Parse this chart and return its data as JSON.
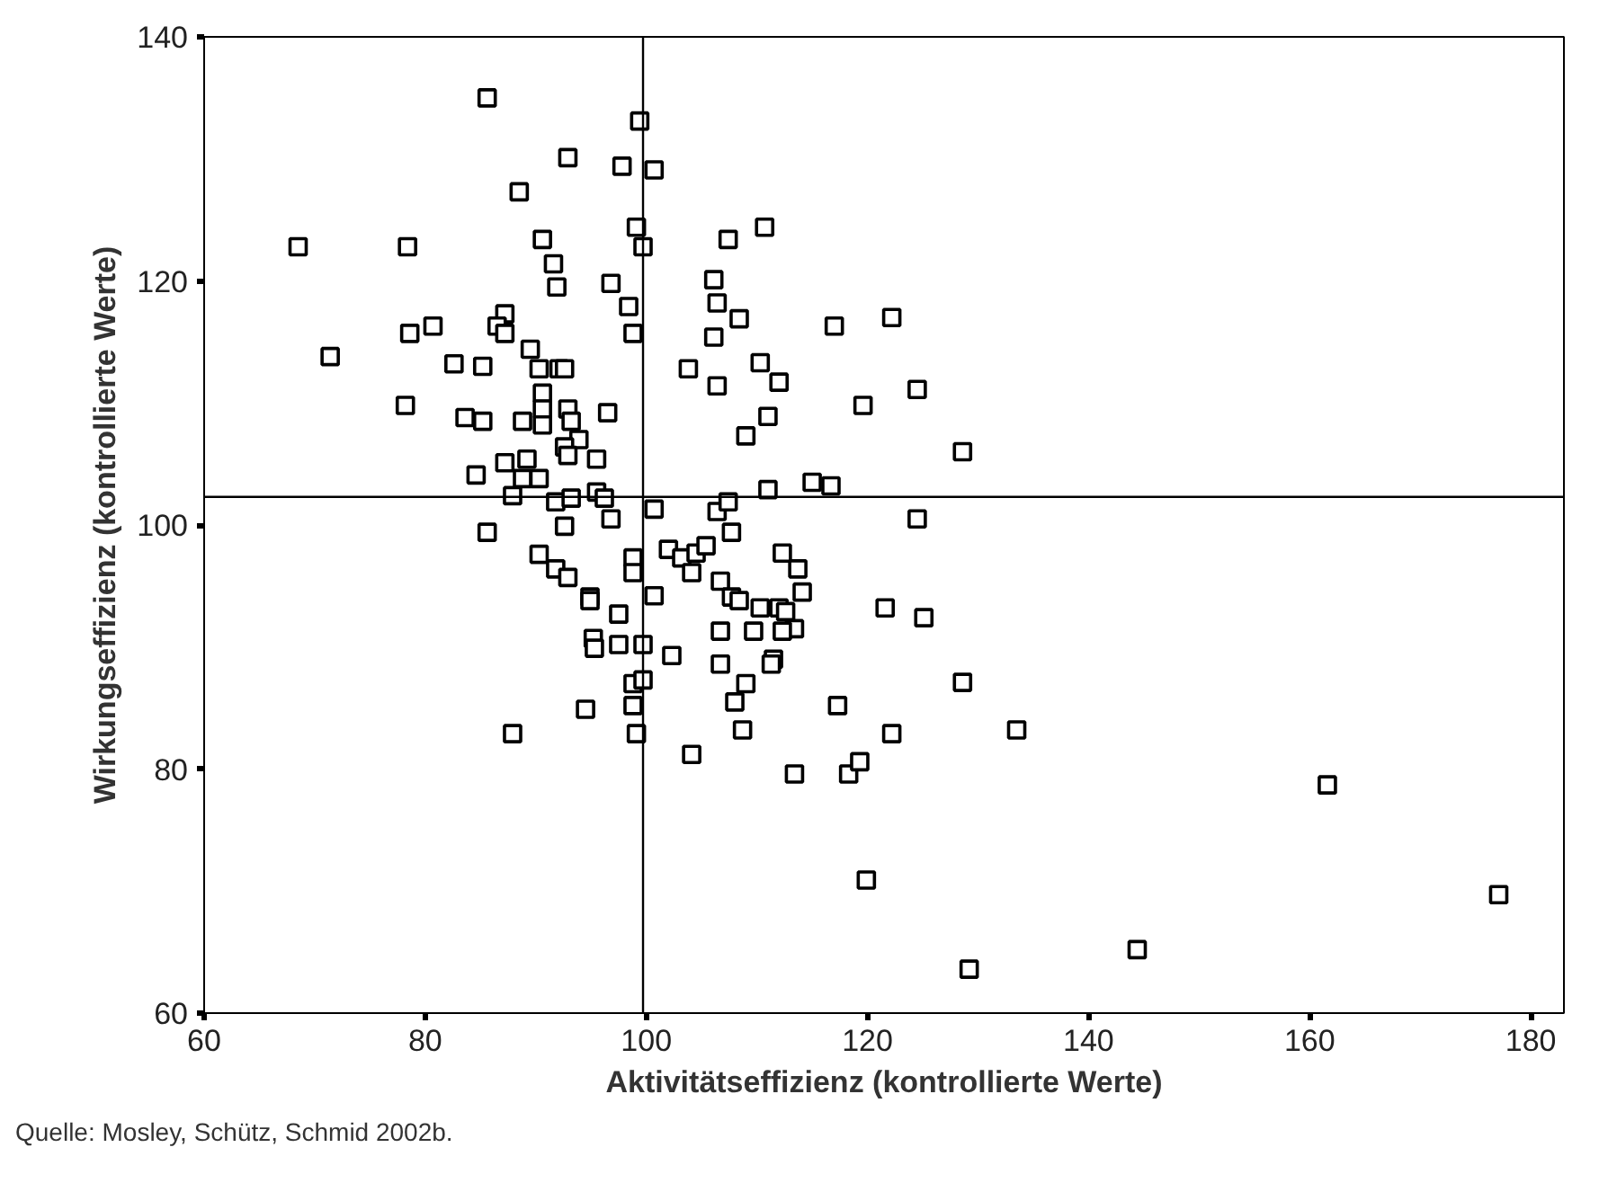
{
  "chart_data": {
    "type": "scatter",
    "xlabel": "Aktivitätseffizienz (kontrollierte Werte)",
    "ylabel": "Wirkungseffizienz (kontrollierte Werte)",
    "annotations": [
      "Quelle: Mosley, Schütz, Schmid 2002b."
    ],
    "xlim": [
      60,
      183
    ],
    "ylim": [
      60,
      140
    ],
    "xticks": [
      60,
      80,
      100,
      120,
      140,
      160,
      180
    ],
    "yticks": [
      60,
      80,
      100,
      120,
      140
    ],
    "grid": false,
    "marker": "square",
    "ref_lines": [
      {
        "axis": "x",
        "value": 99.7,
        "color": "#000000"
      },
      {
        "axis": "y",
        "value": 102.3,
        "color": "#000000"
      }
    ],
    "series": [
      {
        "color": "#000000",
        "x": [
          85.6,
          99.4,
          92.9,
          97.8,
          88.5,
          99.1,
          90.6,
          99.7,
          68.5,
          78.4,
          91.6,
          91.9,
          96.8,
          98.4,
          87.2,
          78.6,
          80.7,
          86.5,
          87.2,
          98.8,
          89.5,
          71.4,
          82.6,
          85.2,
          90.3,
          92.1,
          92.6,
          90.6,
          78.2,
          90.6,
          92.9,
          96.5,
          83.6,
          85.2,
          88.8,
          90.6,
          93.2,
          93.9,
          92.6,
          92.9,
          95.5,
          87.2,
          89.2,
          84.6,
          88.8,
          90.3,
          87.9,
          91.8,
          93.2,
          95.5,
          96.2,
          96.8,
          92.6,
          85.6,
          100.7,
          110.7,
          107.4,
          106.1,
          106.4,
          108.4,
          117.0,
          122.2,
          106.1,
          103.8,
          110.3,
          106.4,
          112.0,
          124.5,
          119.6,
          111.0,
          109.0,
          128.6,
          111.0,
          115.0,
          116.7,
          100.7,
          106.4,
          107.4,
          107.7,
          124.5,
          90.3,
          91.8,
          92.9,
          98.8,
          98.8,
          94.9,
          94.9,
          97.5,
          95.2,
          95.3,
          97.5,
          99.7,
          98.8,
          99.7,
          98.8,
          94.5,
          99.1,
          87.9,
          102.0,
          103.2,
          104.5,
          105.4,
          104.1,
          112.3,
          113.7,
          114.1,
          106.7,
          107.7,
          108.4,
          110.3,
          112.0,
          112.6,
          113.4,
          112.3,
          109.7,
          106.7,
          100.7,
          102.3,
          106.7,
          111.5,
          111.3,
          109.0,
          108.0,
          117.3,
          108.7,
          104.1,
          113.4,
          118.3,
          119.3,
          121.6,
          125.1,
          128.6,
          122.2,
          133.5,
          161.6,
          119.9,
          177.1,
          144.4,
          129.2
        ],
        "values": [
          135.0,
          133.1,
          130.1,
          129.4,
          127.3,
          124.4,
          123.4,
          122.8,
          122.8,
          122.8,
          121.4,
          119.5,
          119.8,
          117.9,
          117.3,
          115.7,
          116.3,
          116.3,
          115.7,
          115.7,
          114.4,
          113.8,
          113.2,
          113.0,
          112.8,
          112.8,
          112.8,
          110.8,
          109.8,
          109.5,
          109.5,
          109.2,
          108.8,
          108.5,
          108.5,
          108.2,
          108.5,
          107.0,
          106.4,
          105.7,
          105.4,
          105.1,
          105.4,
          104.1,
          103.8,
          103.8,
          102.4,
          101.9,
          102.2,
          102.7,
          102.2,
          100.5,
          99.9,
          99.4,
          129.1,
          124.4,
          123.4,
          120.1,
          118.2,
          116.9,
          116.3,
          117.0,
          115.4,
          112.8,
          113.3,
          111.4,
          111.7,
          111.1,
          109.8,
          108.9,
          107.3,
          106.0,
          102.9,
          103.5,
          103.2,
          101.3,
          101.1,
          101.9,
          99.4,
          100.5,
          97.6,
          96.4,
          95.7,
          97.3,
          96.1,
          94.1,
          93.8,
          92.7,
          90.7,
          89.9,
          90.2,
          90.2,
          87.0,
          87.3,
          85.2,
          84.9,
          82.9,
          82.9,
          98.0,
          97.3,
          97.7,
          98.3,
          96.1,
          97.7,
          96.4,
          94.5,
          95.4,
          94.1,
          93.8,
          93.2,
          93.2,
          92.9,
          91.5,
          91.3,
          91.3,
          91.3,
          94.2,
          89.3,
          88.6,
          89.0,
          88.6,
          87.0,
          85.5,
          85.2,
          83.2,
          81.2,
          79.6,
          79.6,
          80.6,
          93.2,
          92.4,
          87.1,
          82.9,
          83.2,
          78.7,
          70.9,
          69.7,
          65.2,
          63.6
        ]
      }
    ]
  }
}
